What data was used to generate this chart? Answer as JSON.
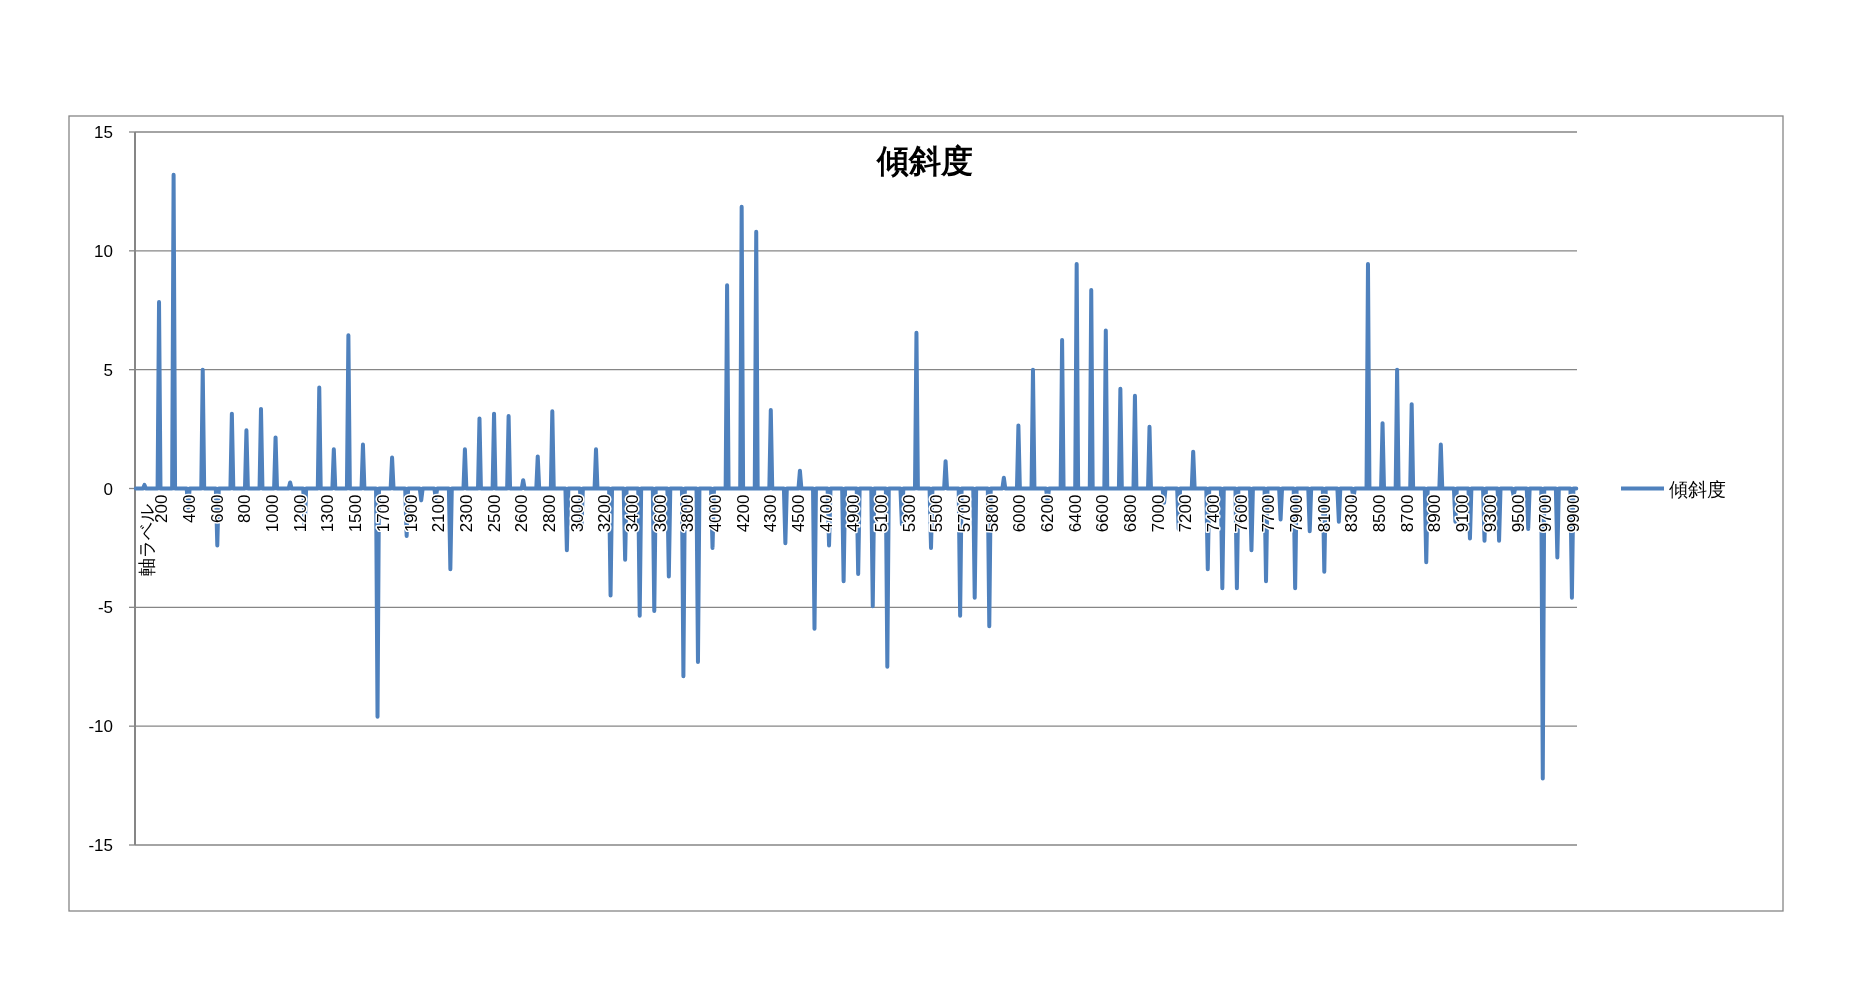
{
  "chart_data": {
    "type": "line",
    "title": "傾斜度",
    "ylabel": "軸ラベル",
    "ylim": [
      -15,
      15
    ],
    "yticks": [
      -15,
      -10,
      -5,
      0,
      5,
      10,
      15
    ],
    "grid": "y",
    "legend": "right",
    "categories": [
      null,
      null,
      null,
      null,
      null,
      null,
      null,
      null,
      null,
      null,
      null,
      null,
      null,
      null,
      null,
      null,
      null,
      null,
      "200",
      null,
      null,
      null,
      null,
      null,
      null,
      null,
      null,
      null,
      null,
      null,
      null,
      null,
      null,
      null,
      null,
      null,
      null,
      "400",
      null,
      null,
      null,
      null,
      null,
      null,
      null,
      null,
      null,
      null,
      null,
      null,
      null,
      null,
      null,
      null,
      null,
      null,
      "600",
      null,
      null,
      null,
      null,
      null,
      null,
      null,
      null,
      null,
      null,
      null,
      null,
      null,
      null,
      null,
      null,
      null,
      null,
      "800",
      null,
      null,
      null,
      null,
      null,
      null,
      null,
      null,
      null,
      null,
      null,
      null,
      null,
      null,
      null,
      null,
      null,
      null,
      "1000",
      null,
      null,
      null,
      null,
      null,
      null,
      null,
      null,
      null,
      null,
      null,
      null,
      null,
      null,
      null,
      null,
      null,
      null,
      "1200",
      null,
      null,
      null,
      null,
      null,
      null,
      null,
      null,
      null,
      null,
      null,
      null,
      null,
      null,
      null,
      null,
      null,
      null,
      "1300",
      null,
      null,
      null,
      null,
      null,
      null,
      null,
      null,
      null,
      null,
      null,
      null,
      null,
      null,
      null,
      null,
      null,
      null,
      "1500",
      null,
      null,
      null,
      null,
      null,
      null,
      null,
      null,
      null,
      null,
      null,
      null,
      null,
      null,
      null,
      null,
      null,
      null,
      "1700",
      null,
      null,
      null,
      null,
      null,
      null,
      null,
      null,
      null,
      null,
      null,
      null,
      null,
      null,
      null,
      null,
      null,
      null,
      "1900",
      null,
      null,
      null,
      null,
      null,
      null,
      null,
      null,
      null,
      null,
      null,
      null,
      null,
      null,
      null,
      null,
      null,
      null,
      "2100",
      null,
      null,
      null,
      null,
      null,
      null,
      null,
      null,
      null,
      null,
      null,
      null,
      null,
      null,
      null,
      null,
      null,
      null,
      "2300",
      null,
      null,
      null,
      null,
      null,
      null,
      null,
      null,
      null,
      null,
      null,
      null,
      null,
      null,
      null,
      null,
      null,
      null,
      "2500",
      null,
      null,
      null,
      null,
      null,
      null,
      null,
      null,
      null,
      null,
      null,
      null,
      null,
      null,
      null,
      null,
      null,
      null,
      "2600",
      null,
      null,
      null,
      null,
      null,
      null,
      null,
      null,
      null,
      null,
      null,
      null,
      null,
      null,
      null,
      null,
      null,
      null,
      "2800",
      null,
      null,
      null,
      null,
      null,
      null,
      null,
      null,
      null,
      null,
      null,
      null,
      null,
      null,
      null,
      null,
      null,
      null,
      "3000",
      null,
      null,
      null,
      null,
      null,
      null,
      null,
      null,
      null,
      null,
      null,
      null,
      null,
      null,
      null,
      null,
      null,
      null,
      "3200",
      null,
      null,
      null,
      null,
      null,
      null,
      null,
      null,
      null,
      null,
      null,
      null,
      null,
      null,
      null,
      null,
      null,
      null,
      "3400",
      null,
      null,
      null,
      null,
      null,
      null,
      null,
      null,
      null,
      null,
      null,
      null,
      null,
      null,
      null,
      null,
      null,
      null,
      "3600",
      null,
      null,
      null,
      null,
      null,
      null,
      null,
      null,
      null,
      null,
      null,
      null,
      null,
      null,
      null,
      null,
      null,
      null,
      "3800",
      null,
      null,
      null,
      null,
      null,
      null,
      null,
      null,
      null,
      null,
      null,
      null,
      null,
      null,
      null,
      null,
      null,
      null,
      "4000",
      null,
      null,
      null,
      null,
      null,
      null,
      null,
      null,
      null,
      null,
      null,
      null,
      null,
      null,
      null,
      null,
      null,
      null,
      "4200",
      null,
      null,
      null,
      null,
      null,
      null,
      null,
      null,
      null,
      null,
      null,
      null,
      null,
      null,
      null,
      null,
      null,
      null,
      "4300",
      null,
      null,
      null,
      null,
      null,
      null,
      null,
      null,
      null,
      null,
      null,
      null,
      null,
      null,
      null,
      null,
      null,
      null,
      "4500",
      null,
      null,
      null,
      null,
      null,
      null,
      null,
      null,
      null,
      null,
      null,
      null,
      null,
      null,
      null,
      null,
      null,
      null,
      "4700",
      null,
      null,
      null,
      null,
      null,
      null,
      null,
      null,
      null,
      null,
      null,
      null,
      null,
      null,
      null,
      null,
      null,
      null,
      "4900",
      null,
      null,
      null,
      null,
      null,
      null,
      null,
      null,
      null,
      null,
      null,
      null,
      null,
      null,
      null,
      null,
      null,
      null,
      "5100",
      null,
      null,
      null,
      null,
      null,
      null,
      null,
      null,
      null,
      null,
      null,
      null,
      null,
      null,
      null,
      null,
      null,
      null,
      "5300",
      null,
      null,
      null,
      null,
      null,
      null,
      null,
      null,
      null,
      null,
      null,
      null,
      null,
      null,
      null,
      null,
      null,
      null,
      "5500",
      null,
      null,
      null,
      null,
      null,
      null,
      null,
      null,
      null,
      null,
      null,
      null,
      null,
      null,
      null,
      null,
      null,
      null,
      "5700",
      null,
      null,
      null,
      null,
      null,
      null,
      null,
      null,
      null,
      null,
      null,
      null,
      null,
      null,
      null,
      null,
      null,
      null,
      "5800",
      null,
      null,
      null,
      null,
      null,
      null,
      null,
      null,
      null,
      null,
      null,
      null,
      null,
      null,
      null,
      null,
      null,
      null,
      "6000",
      null,
      null,
      null,
      null,
      null,
      null,
      null,
      null,
      null,
      null,
      null,
      null,
      null,
      null,
      null,
      null,
      null,
      null,
      "6200",
      null,
      null,
      null,
      null,
      null,
      null,
      null,
      null,
      null,
      null,
      null,
      null,
      null,
      null,
      null,
      null,
      null,
      null,
      "6400",
      null,
      null,
      null,
      null,
      null,
      null,
      null,
      null,
      null,
      null,
      null,
      null,
      null,
      null,
      null,
      null,
      null,
      null,
      "6600",
      null,
      null,
      null,
      null,
      null,
      null,
      null,
      null,
      null,
      null,
      null,
      null,
      null,
      null,
      null,
      null,
      null,
      null,
      "6800",
      null,
      null,
      null,
      null,
      null,
      null,
      null,
      null,
      null,
      null,
      null,
      null,
      null,
      null,
      null,
      null,
      null,
      null,
      "7000",
      null,
      null,
      null,
      null,
      null,
      null,
      null,
      null,
      null,
      null,
      null,
      null,
      null,
      null,
      null,
      null,
      null,
      null,
      "7200",
      null,
      null,
      null,
      null,
      null,
      null,
      null,
      null,
      null,
      null,
      null,
      null,
      null,
      null,
      null,
      null,
      null,
      null,
      "7400",
      null,
      null,
      null,
      null,
      null,
      null,
      null,
      null,
      null,
      null,
      null,
      null,
      null,
      null,
      null,
      null,
      null,
      null,
      "7600",
      null,
      null,
      null,
      null,
      null,
      null,
      null,
      null,
      null,
      null,
      null,
      null,
      null,
      null,
      null,
      null,
      null,
      null,
      "7700",
      null,
      null,
      null,
      null,
      null,
      null,
      null,
      null,
      null,
      null,
      null,
      null,
      null,
      null,
      null,
      null,
      null,
      null,
      "7900",
      null,
      null,
      null,
      null,
      null,
      null,
      null,
      null,
      null,
      null,
      null,
      null,
      null,
      null,
      null,
      null,
      null,
      null,
      "8100",
      null,
      null,
      null,
      null,
      null,
      null,
      null,
      null,
      null,
      null,
      null,
      null,
      null,
      null,
      null,
      null,
      null,
      null,
      "8300",
      null,
      null,
      null,
      null,
      null,
      null,
      null,
      null,
      null,
      null,
      null,
      null,
      null,
      null,
      null,
      null,
      null,
      null,
      "8500",
      null,
      null,
      null,
      null,
      null,
      null,
      null,
      null,
      null,
      null,
      null,
      null,
      null,
      null,
      null,
      null,
      null,
      null,
      "8700",
      null,
      null,
      null,
      null,
      null,
      null,
      null,
      null,
      null,
      null,
      null,
      null,
      null,
      null,
      null,
      null,
      null,
      null,
      "8900",
      null,
      null,
      null,
      null,
      null,
      null,
      null,
      null,
      null,
      null,
      null,
      null,
      null,
      null,
      null,
      null,
      null,
      null,
      "9100",
      null,
      null,
      null,
      null,
      null,
      null,
      null,
      null,
      null,
      null,
      null,
      null,
      null,
      null,
      null,
      null,
      null,
      null,
      "9300",
      null,
      null,
      null,
      null,
      null,
      null,
      null,
      null,
      null,
      null,
      null,
      null,
      null,
      null,
      null,
      null,
      null,
      null,
      "9500",
      null,
      null,
      null,
      null,
      null,
      null,
      null,
      null,
      null,
      null,
      null,
      null,
      null,
      null,
      null,
      null,
      null,
      null,
      "9700",
      null,
      null,
      null,
      null,
      null,
      null,
      null,
      null,
      null,
      null,
      null,
      null,
      null,
      null,
      null,
      null,
      null,
      null,
      "9900",
      null,
      null
    ],
    "series": [
      {
        "name": "傾斜度",
        "color": "#4f81bd",
        "values": [
          0,
          0,
          0,
          0,
          0,
          0,
          0.15,
          0,
          0,
          0,
          0,
          0,
          0,
          0,
          0,
          0,
          7.85,
          0,
          0,
          0,
          0,
          0,
          0,
          0,
          0,
          0,
          13.2,
          0,
          0,
          0,
          0,
          0,
          0,
          0,
          0,
          0,
          -0.8,
          0,
          0,
          0,
          0,
          0,
          0,
          0,
          0,
          0,
          5.0,
          0,
          0,
          0,
          0,
          0,
          0,
          0,
          0,
          0,
          -2.4,
          0,
          0,
          0,
          0,
          0,
          0,
          0,
          0,
          0,
          3.15,
          0,
          0,
          0,
          0,
          0,
          0,
          0,
          0,
          0,
          2.45,
          0,
          0,
          0,
          0,
          0,
          0,
          0,
          0,
          0,
          3.35,
          0,
          0,
          0,
          0,
          0,
          0,
          0,
          0,
          0,
          2.15,
          0,
          0,
          0,
          0,
          0,
          0,
          0,
          0,
          0,
          0.25,
          0,
          0,
          0,
          0,
          0,
          0,
          0,
          0,
          0,
          -1.7,
          0,
          0,
          0,
          0,
          0,
          0,
          0,
          0,
          0,
          4.25,
          0,
          0,
          0,
          0,
          0,
          0,
          0,
          0,
          0,
          1.65,
          0,
          0,
          0,
          0,
          0,
          0,
          0,
          0,
          0,
          6.45,
          0,
          0,
          0,
          0,
          0,
          0,
          0,
          0,
          0,
          1.85,
          0,
          0,
          0,
          0,
          0,
          0,
          0,
          0,
          0,
          -9.6,
          0,
          0,
          0,
          0,
          0,
          0,
          0,
          0,
          0,
          1.3,
          0,
          0,
          0,
          0,
          0,
          0,
          0,
          0,
          0,
          -2.0,
          0,
          0,
          0,
          0,
          0,
          0,
          0,
          0,
          0,
          -0.5,
          0,
          0,
          0,
          0,
          0,
          0,
          0,
          0,
          0,
          -0.4,
          0,
          0,
          0,
          0,
          0,
          0,
          0,
          0,
          0,
          -3.4,
          0,
          0,
          0,
          0,
          0,
          0,
          0,
          0,
          0,
          1.65,
          0,
          0,
          0,
          0,
          0,
          0,
          0,
          0,
          0,
          2.95,
          0,
          0,
          0,
          0,
          0,
          0,
          0,
          0,
          0,
          3.15,
          0,
          0,
          0,
          0,
          0,
          0,
          0,
          0,
          0,
          3.05,
          0,
          0,
          0,
          0,
          0,
          0,
          0,
          0,
          0,
          0.35,
          0,
          0,
          0,
          0,
          0,
          0,
          0,
          0,
          0,
          1.35,
          0,
          0,
          0,
          0,
          0,
          0,
          0,
          0,
          0,
          3.25,
          0,
          0,
          0,
          0,
          0,
          0,
          0,
          0,
          0,
          -2.6,
          0,
          0,
          0,
          0,
          0,
          0,
          0,
          0,
          0,
          -1.65,
          0,
          0,
          0,
          0,
          0,
          0,
          0,
          0,
          0,
          1.65,
          0,
          0,
          0,
          0,
          0,
          0,
          0,
          0,
          0,
          -4.5,
          0,
          0,
          0,
          0,
          0,
          0,
          0,
          0,
          0,
          -3.0,
          0,
          0,
          0,
          0,
          0,
          0,
          0,
          0,
          0,
          -5.35,
          0,
          0,
          0,
          0,
          0,
          0,
          0,
          0,
          0,
          -5.15,
          0,
          0,
          0,
          0,
          0,
          0,
          0,
          0,
          0,
          -3.7,
          0,
          0,
          0,
          0,
          0,
          0,
          0,
          0,
          0,
          -7.9,
          0,
          0,
          0,
          0,
          0,
          0,
          0,
          0,
          0,
          -7.3,
          0,
          0,
          0,
          0,
          0,
          0,
          0,
          0,
          0,
          -2.5,
          0,
          0,
          0,
          0,
          0,
          0,
          0,
          0,
          0,
          8.55,
          0,
          0,
          0,
          0,
          0,
          0,
          0,
          0,
          0,
          11.85,
          0,
          0,
          0,
          0,
          0,
          0,
          0,
          0,
          0,
          10.8,
          0,
          0,
          0,
          0,
          0,
          0,
          0,
          0,
          0,
          3.3,
          0,
          0,
          0,
          0,
          0,
          0,
          0,
          0,
          0,
          -2.3,
          0,
          0,
          0,
          0,
          0,
          0,
          0,
          0,
          0,
          0.75,
          0,
          0,
          0,
          0,
          0,
          0,
          0,
          0,
          0,
          -5.9,
          0,
          0,
          0,
          0,
          0,
          0,
          0,
          0,
          0,
          -2.4,
          0,
          0,
          0,
          0,
          0,
          0,
          0,
          0,
          0,
          -3.9,
          0,
          0,
          0,
          0,
          0,
          0,
          0,
          0,
          0,
          -3.6,
          0,
          0,
          0,
          0,
          0,
          0,
          0,
          0,
          0,
          -4.95,
          0,
          0,
          0,
          0,
          0,
          0,
          0,
          0,
          0,
          -7.5,
          0,
          0,
          0,
          0,
          0,
          0,
          0,
          0,
          0,
          -1.5,
          0,
          0,
          0,
          0,
          0,
          0,
          0,
          0,
          0,
          6.55,
          0,
          0,
          0,
          0,
          0,
          0,
          0,
          0,
          0,
          -2.5,
          0,
          0,
          0,
          0,
          0,
          0,
          0,
          0,
          0,
          1.15,
          0,
          0,
          0,
          0,
          0,
          0,
          0,
          0,
          0,
          -5.35,
          0,
          0,
          0,
          0,
          0,
          0,
          0,
          0,
          0,
          -4.6,
          0,
          0,
          0,
          0,
          0,
          0,
          0,
          0,
          0,
          -5.8,
          0,
          0,
          0,
          0,
          0,
          0,
          0,
          0,
          0,
          0.45,
          0,
          0,
          0,
          0,
          0,
          0,
          0,
          0,
          0,
          2.65,
          0,
          0,
          0,
          0,
          0,
          0,
          0,
          0,
          0,
          5.0,
          0,
          0,
          0,
          0,
          0,
          0,
          0,
          0,
          0,
          -0.55,
          0,
          0,
          0,
          0,
          0,
          0,
          0,
          0,
          0,
          6.25,
          0,
          0,
          0,
          0,
          0,
          0,
          0,
          0,
          0,
          9.45,
          0,
          0,
          0,
          0,
          0,
          0,
          0,
          0,
          0,
          8.35,
          0,
          0,
          0,
          0,
          0,
          0,
          0,
          0,
          0,
          6.65,
          0,
          0,
          0,
          0,
          0,
          0,
          0,
          0,
          0,
          4.2,
          0,
          0,
          0,
          0,
          0,
          0,
          0,
          0,
          0,
          3.9,
          0,
          0,
          0,
          0,
          0,
          0,
          0,
          0,
          0,
          2.6,
          0,
          0,
          0,
          0,
          0,
          0,
          0,
          0,
          0,
          -0.6,
          0,
          0,
          0,
          0,
          0,
          0,
          0,
          0,
          0,
          -1.7,
          0,
          0,
          0,
          0,
          0,
          0,
          0,
          0,
          0,
          1.55,
          0,
          0,
          0,
          0,
          0,
          0,
          0,
          0,
          0,
          -3.4,
          0,
          0,
          0,
          0,
          0,
          0,
          0,
          0,
          0,
          -4.2,
          0,
          0,
          0,
          0,
          0,
          0,
          0,
          0,
          0,
          -4.2,
          0,
          0,
          0,
          0,
          0,
          0,
          0,
          0,
          0,
          -2.6,
          0,
          0,
          0,
          0,
          0,
          0,
          0,
          0,
          0,
          -3.9,
          0,
          0,
          0,
          0,
          0,
          0,
          0,
          0,
          0,
          -1.3,
          0,
          0,
          0,
          0,
          0,
          0,
          0,
          0,
          0,
          -4.2,
          0,
          0,
          0,
          0,
          0,
          0,
          0,
          0,
          0,
          -1.8,
          0,
          0,
          0,
          0,
          0,
          0,
          0,
          0,
          0,
          -3.5,
          0,
          0,
          0,
          0,
          0,
          0,
          0,
          0,
          0,
          -1.4,
          0,
          0,
          0,
          0,
          0,
          0,
          0,
          0,
          0,
          -0.4,
          0,
          0,
          0,
          0,
          0,
          0,
          0,
          0,
          0,
          9.45,
          0,
          0,
          0,
          0,
          0,
          0,
          0,
          0,
          0,
          2.75,
          0,
          0,
          0,
          0,
          0,
          0,
          0,
          0,
          0,
          5.0,
          0,
          0,
          0,
          0,
          0,
          0,
          0,
          0,
          0,
          3.55,
          0,
          0,
          0,
          0,
          0,
          0,
          0,
          0,
          0,
          -3.1,
          0,
          0,
          0,
          0,
          0,
          0,
          0,
          0,
          0,
          1.85,
          0,
          0,
          0,
          0,
          0,
          0,
          0,
          0,
          0,
          -1.4,
          0,
          0,
          0,
          0,
          0,
          0,
          0,
          0,
          0,
          -2.1,
          0,
          0,
          0,
          0,
          0,
          0,
          0,
          0,
          0,
          -2.2,
          0,
          0,
          0,
          0,
          0,
          0,
          0,
          0,
          0,
          -2.2,
          0,
          0,
          0,
          0,
          0,
          0,
          0,
          0,
          0,
          -0.3,
          0,
          0,
          0,
          0,
          0,
          0,
          0,
          0,
          0,
          -1.7,
          0,
          0,
          0,
          0,
          0,
          0,
          0,
          0,
          0,
          -12.2,
          0,
          0,
          0,
          0,
          0,
          0,
          0,
          0,
          0,
          -2.9,
          0,
          0,
          0,
          0,
          0,
          0,
          0,
          0,
          0,
          -4.6,
          0,
          0,
          0
        ]
      }
    ]
  }
}
